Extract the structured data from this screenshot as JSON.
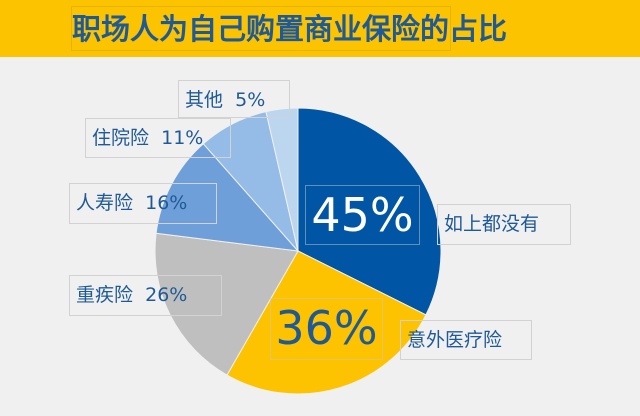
{
  "chart_data": {
    "type": "pie",
    "title": "职场人为自己购置商业保险的占比",
    "start": "top",
    "direction": "clockwise",
    "slices": [
      {
        "label": "如上都没有",
        "value": 45,
        "value_label": "45%",
        "color": "#0055a5"
      },
      {
        "label": "意外医疗险",
        "value": 36,
        "value_label": "36%",
        "color": "#fdc300"
      },
      {
        "label": "重疾险",
        "value": 26,
        "value_label": "26%",
        "color": "#bfbfbf"
      },
      {
        "label": "人寿险",
        "value": 16,
        "value_label": "16%",
        "color": "#6f9fd8"
      },
      {
        "label": "住院险",
        "value": 11,
        "value_label": "11%",
        "color": "#94bce6"
      },
      {
        "label": "其他",
        "value": 5,
        "value_label": "5%",
        "color": "#bcd6f0"
      }
    ]
  },
  "colors": {
    "header_bg": "#fcc300",
    "title_text": "#1f5a96",
    "background": "#f0f0f0"
  }
}
